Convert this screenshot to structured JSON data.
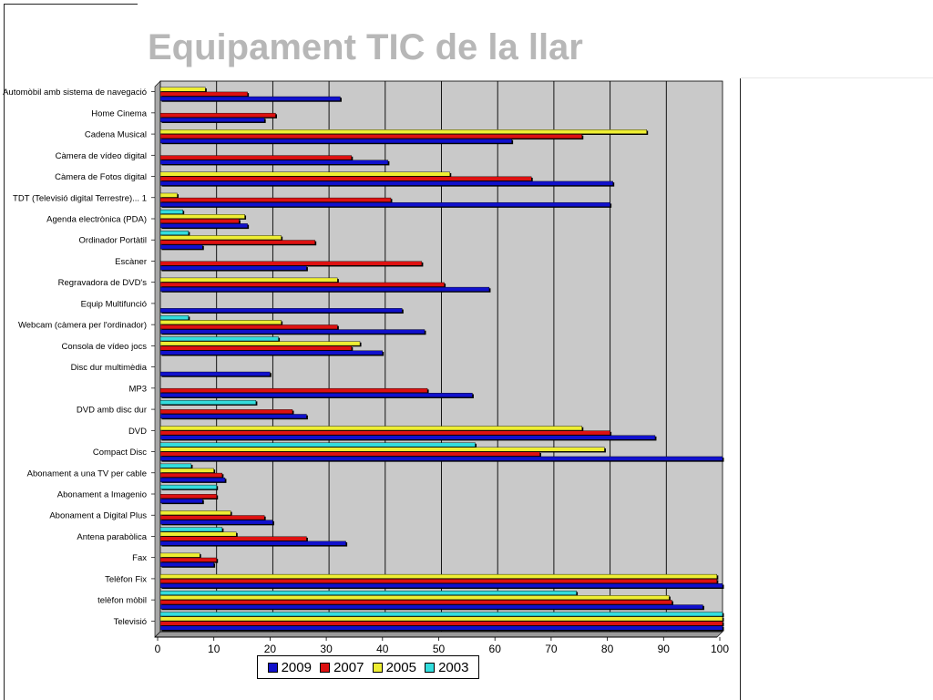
{
  "slide": {
    "title": "Equipament TIC de la llar"
  },
  "chart_data": {
    "type": "bar",
    "orientation": "horizontal",
    "title": "",
    "xlabel": "",
    "ylabel": "",
    "xlim": [
      0,
      100
    ],
    "xticks": [
      "0",
      "10",
      "20",
      "30",
      "40",
      "50",
      "60",
      "70",
      "80",
      "90",
      "100"
    ],
    "grid": true,
    "legend_position": "bottom",
    "categories": [
      "Automòbil amb sistema de navegació",
      "Home Cinema",
      "Cadena Musical",
      "Càmera de vídeo digital",
      "Càmera de Fotos digital",
      "TDT (Televisió digital Terrestre)... 1",
      "Agenda electrònica (PDA)",
      "Ordinador Portàtil",
      "Escàner",
      "Regravadora de DVD's",
      "Equip Multifunció",
      "Webcam (càmera per l'ordinador)",
      "Consola de vídeo jocs",
      "Disc dur multimèdia",
      "MP3",
      "DVD amb disc dur",
      "DVD",
      "Compact Disc",
      "Abonament a una TV per cable",
      "Abonament a Imagenio",
      "Abonament a Digital Plus",
      "Antena parabòlica",
      "Fax",
      "Telèfon Fix",
      "telèfon mòbil",
      "Televisió"
    ],
    "series": [
      {
        "name": "2003",
        "color": "#33dddd",
        "values": [
          null,
          null,
          null,
          null,
          null,
          null,
          4,
          5,
          null,
          null,
          null,
          5,
          21,
          null,
          null,
          17,
          null,
          56,
          5.5,
          10,
          null,
          11,
          null,
          null,
          74,
          100
        ]
      },
      {
        "name": "2005",
        "color": "#eeee33",
        "values": [
          8,
          null,
          86.5,
          null,
          51.5,
          3,
          15,
          21.5,
          null,
          31.5,
          null,
          21.5,
          35.5,
          null,
          null,
          null,
          75,
          79,
          9.5,
          null,
          12.5,
          13.5,
          7,
          99,
          90.5,
          100
        ]
      },
      {
        "name": "2007",
        "color": "#dd1111",
        "values": [
          15.5,
          20.5,
          75,
          34,
          66,
          41,
          14,
          27.5,
          46.5,
          50.5,
          null,
          31.5,
          34,
          null,
          47.5,
          23.5,
          80,
          67.5,
          11,
          10,
          18.5,
          26,
          10,
          99,
          91,
          100
        ]
      },
      {
        "name": "2009",
        "color": "#1111cc",
        "values": [
          32,
          18.5,
          62.5,
          40.5,
          80.5,
          80,
          15.5,
          7.5,
          26,
          58.5,
          43,
          47,
          39.5,
          19.5,
          55.5,
          26,
          88,
          100,
          11.5,
          7.5,
          20,
          33,
          9.5,
          100,
          96.5,
          100
        ]
      }
    ]
  }
}
